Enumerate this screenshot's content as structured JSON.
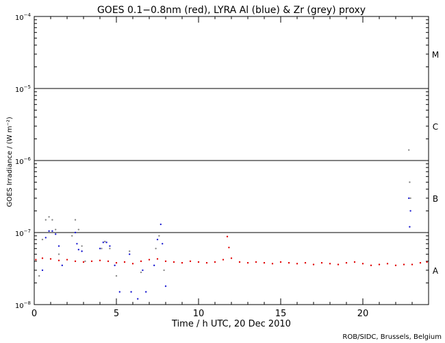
{
  "chart_data": {
    "type": "scatter",
    "title": "GOES 0.1−0.8nm (red), LYRA Al (blue) & Zr (grey) proxy",
    "xlabel": "Time / h UTC, 20 Dec 2010",
    "ylabel": "GOES Irradiance / (W m⁻²)",
    "credit": "ROB/SIDC, Brussels, Belgium",
    "xlim": [
      0,
      24
    ],
    "ylim": [
      1e-08,
      0.0001
    ],
    "yscale": "log",
    "x_ticks": [
      {
        "value": 0,
        "label": "0"
      },
      {
        "value": 5,
        "label": "5"
      },
      {
        "value": 10,
        "label": "10"
      },
      {
        "value": 15,
        "label": "15"
      },
      {
        "value": 20,
        "label": "20"
      }
    ],
    "y_ticks": [
      {
        "value": 1e-08,
        "base": "10",
        "exp": "−8"
      },
      {
        "value": 1e-07,
        "base": "10",
        "exp": "−7"
      },
      {
        "value": 1e-06,
        "base": "10",
        "exp": "−6"
      },
      {
        "value": 1e-05,
        "base": "10",
        "exp": "−5"
      },
      {
        "value": 0.0001,
        "base": "10",
        "exp": "−4"
      }
    ],
    "class_lines": [
      1e-07,
      1e-06,
      1e-05
    ],
    "class_labels": [
      {
        "label": "A",
        "value": 3e-08
      },
      {
        "label": "B",
        "value": 3e-07
      },
      {
        "label": "C",
        "value": 3e-06
      },
      {
        "label": "M",
        "value": 3e-05
      }
    ],
    "colors": {
      "goes": "#e00000",
      "lyra_al": "#1a1ad0",
      "lyra_zr": "#888888"
    },
    "series": [
      {
        "color_key": "goes",
        "points": [
          [
            0.1,
            4.2e-08
          ],
          [
            0.5,
            4.4e-08
          ],
          [
            1.0,
            4.3e-08
          ],
          [
            1.5,
            4.1e-08
          ],
          [
            2.0,
            4.2e-08
          ],
          [
            2.5,
            4e-08
          ],
          [
            3.0,
            3.9e-08
          ],
          [
            3.5,
            4e-08
          ],
          [
            4.0,
            4.1e-08
          ],
          [
            4.5,
            4e-08
          ],
          [
            5.0,
            3.8e-08
          ],
          [
            5.5,
            3.9e-08
          ],
          [
            6.0,
            3.7e-08
          ],
          [
            6.5,
            4e-08
          ],
          [
            7.0,
            4.2e-08
          ],
          [
            7.5,
            4.3e-08
          ],
          [
            8.0,
            4e-08
          ],
          [
            8.5,
            3.9e-08
          ],
          [
            9.0,
            3.8e-08
          ],
          [
            9.5,
            4e-08
          ],
          [
            10.0,
            3.9e-08
          ],
          [
            10.5,
            3.8e-08
          ],
          [
            11.0,
            3.9e-08
          ],
          [
            11.5,
            4.2e-08
          ],
          [
            11.75,
            8.8e-08
          ],
          [
            11.85,
            6.2e-08
          ],
          [
            12.0,
            4.4e-08
          ],
          [
            12.5,
            3.9e-08
          ],
          [
            13.0,
            3.8e-08
          ],
          [
            13.5,
            3.9e-08
          ],
          [
            14.0,
            3.8e-08
          ],
          [
            14.5,
            3.7e-08
          ],
          [
            15.0,
            3.9e-08
          ],
          [
            15.5,
            3.8e-08
          ],
          [
            16.0,
            3.7e-08
          ],
          [
            16.5,
            3.8e-08
          ],
          [
            17.0,
            3.6e-08
          ],
          [
            17.5,
            3.8e-08
          ],
          [
            18.0,
            3.7e-08
          ],
          [
            18.5,
            3.6e-08
          ],
          [
            19.0,
            3.8e-08
          ],
          [
            19.5,
            3.9e-08
          ],
          [
            20.0,
            3.7e-08
          ],
          [
            20.5,
            3.5e-08
          ],
          [
            21.0,
            3.6e-08
          ],
          [
            21.5,
            3.7e-08
          ],
          [
            22.0,
            3.5e-08
          ],
          [
            22.5,
            3.6e-08
          ],
          [
            23.0,
            3.6e-08
          ],
          [
            23.5,
            3.8e-08
          ],
          [
            23.9,
            3.9e-08
          ]
        ]
      },
      {
        "color_key": "lyra_al",
        "points": [
          [
            0.5,
            3e-08
          ],
          [
            0.7,
            8.5e-08
          ],
          [
            0.9,
            1.05e-07
          ],
          [
            1.1,
            1.05e-07
          ],
          [
            1.3,
            9.5e-08
          ],
          [
            1.5,
            6.5e-08
          ],
          [
            1.7,
            3.5e-08
          ],
          [
            2.5,
            1e-07
          ],
          [
            2.6,
            7e-08
          ],
          [
            2.7,
            5.8e-08
          ],
          [
            2.9,
            5.5e-08
          ],
          [
            4.0,
            6e-08
          ],
          [
            4.2,
            7.3e-08
          ],
          [
            4.4,
            7.3e-08
          ],
          [
            4.6,
            6.5e-08
          ],
          [
            4.9,
            3.5e-08
          ],
          [
            5.2,
            1.5e-08
          ],
          [
            5.8,
            5e-08
          ],
          [
            5.9,
            1.5e-08
          ],
          [
            6.3,
            1.2e-08
          ],
          [
            6.6,
            3e-08
          ],
          [
            6.8,
            1.5e-08
          ],
          [
            7.3,
            3.5e-08
          ],
          [
            7.5,
            8e-08
          ],
          [
            7.7,
            1.3e-07
          ],
          [
            7.8,
            7e-08
          ],
          [
            8.0,
            1.8e-08
          ],
          [
            22.8,
            3e-07
          ],
          [
            22.85,
            1.2e-07
          ],
          [
            22.9,
            2e-07
          ]
        ]
      },
      {
        "color_key": "lyra_zr",
        "points": [
          [
            0.3,
            2.5e-08
          ],
          [
            0.5,
            8e-08
          ],
          [
            0.7,
            1.5e-07
          ],
          [
            0.9,
            1.65e-07
          ],
          [
            1.1,
            1.5e-07
          ],
          [
            1.3,
            1.1e-07
          ],
          [
            1.5,
            5e-08
          ],
          [
            2.3,
            9e-08
          ],
          [
            2.5,
            1.5e-07
          ],
          [
            2.7,
            1.1e-07
          ],
          [
            2.9,
            6.5e-08
          ],
          [
            3.1,
            4e-08
          ],
          [
            4.1,
            6e-08
          ],
          [
            4.3,
            7.5e-08
          ],
          [
            4.6,
            6e-08
          ],
          [
            5.0,
            2.5e-08
          ],
          [
            5.8,
            5.5e-08
          ],
          [
            6.5,
            2.8e-08
          ],
          [
            7.4,
            6e-08
          ],
          [
            7.6,
            9e-08
          ],
          [
            7.9,
            3e-08
          ],
          [
            22.8,
            1.4e-06
          ],
          [
            22.85,
            5e-07
          ],
          [
            22.9,
            3e-07
          ]
        ]
      }
    ]
  }
}
